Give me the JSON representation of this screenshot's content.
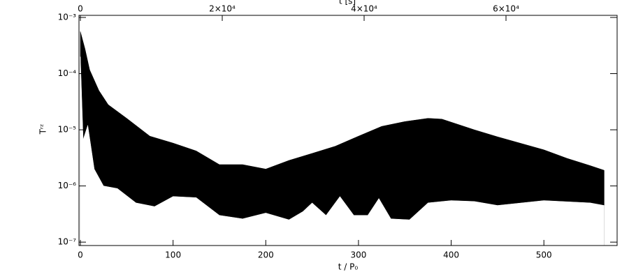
{
  "chart_data": {
    "type": "band",
    "xlabel": "t / P₀",
    "ylabel": "Tʳᶻ",
    "x2label": "t [s]",
    "color": "#000000",
    "log_y": true,
    "xlim": [
      -1.5,
      579
    ],
    "xticks": [
      0,
      100,
      200,
      300,
      400,
      500
    ],
    "x2lim": [
      -197,
      75665
    ],
    "x2ticks": [
      0,
      {
        "value": 20000,
        "label": "2×10⁴"
      },
      {
        "value": 40000,
        "label": "4×10⁴"
      },
      {
        "value": 60000,
        "label": "6×10⁴"
      }
    ],
    "ylim": [
      8.7e-08,
      0.00109
    ],
    "yticks": [
      {
        "value": 1e-07,
        "label": "10⁻⁷"
      },
      {
        "value": 1e-06,
        "label": "10⁻⁶"
      },
      {
        "value": 1e-05,
        "label": "10⁻⁵"
      },
      {
        "value": 0.0001,
        "label": "10⁻⁴"
      },
      {
        "value": 0.001,
        "label": "10⁻³"
      }
    ],
    "upper": {
      "x": [
        0,
        5,
        10,
        20,
        30,
        50,
        75,
        100,
        125,
        150,
        175,
        200,
        225,
        250,
        275,
        300,
        325,
        350,
        375,
        390,
        425,
        450,
        500,
        525,
        550,
        565
      ],
      "values": [
        0.00056,
        0.000276,
        0.000117,
        5e-05,
        2.8e-05,
        1.6e-05,
        7.7e-06,
        5.8e-06,
        4.2e-06,
        2.4e-06,
        2.4e-06,
        2e-06,
        2.85e-06,
        3.8e-06,
        5.1e-06,
        7.7e-06,
        1.15e-05,
        1.4e-05,
        1.6e-05,
        1.55e-05,
        1e-05,
        7.5e-06,
        4.4e-06,
        3.1e-06,
        2.3e-06,
        1.9e-06
      ]
    },
    "lower": {
      "x": [
        0,
        3,
        8,
        15,
        25,
        40,
        60,
        80,
        100,
        125,
        150,
        175,
        200,
        225,
        240,
        250,
        265,
        280,
        295,
        310,
        322,
        335,
        355,
        375,
        400,
        425,
        450,
        500,
        550,
        565
      ],
      "values": [
        0.0002,
        6.7e-06,
        1.2e-05,
        2e-06,
        1e-06,
        9e-07,
        5e-07,
        4.3e-07,
        6.5e-07,
        6.2e-07,
        3e-07,
        2.6e-07,
        3.3e-07,
        2.5e-07,
        3.5e-07,
        5e-07,
        3e-07,
        6.5e-07,
        3e-07,
        3e-07,
        6e-07,
        2.6e-07,
        2.5e-07,
        5e-07,
        5.5e-07,
        5.3e-07,
        4.5e-07,
        5.5e-07,
        5e-07,
        4.5e-07
      ]
    }
  }
}
